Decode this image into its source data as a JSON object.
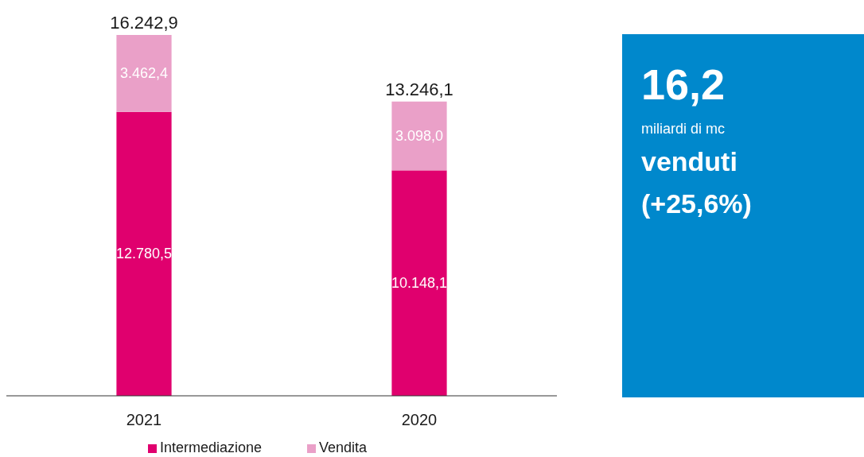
{
  "chart_data": [
    {
      "type": "bar",
      "stacked": true,
      "categories": [
        "2021",
        "2020"
      ],
      "legend": "bottom",
      "series": [
        {
          "name": "Intermediazione",
          "color": "#e0006e",
          "values": [
            12780.5,
            10148.1
          ],
          "value_labels": [
            "12.780,5",
            "10.148,1"
          ]
        },
        {
          "name": "Vendita",
          "color": "#eaa0c8",
          "values": [
            3462.4,
            3098.0
          ],
          "value_labels": [
            "3.462,4",
            "3.098,0"
          ]
        }
      ],
      "totals": [
        "16.242,9",
        "13.246,1"
      ]
    },
    {
      "type": "other",
      "color": "#0088cc",
      "title": "16,2",
      "annotations": [
        "miliardi di mc",
        "venduti",
        "(+25,6%)"
      ]
    }
  ]
}
